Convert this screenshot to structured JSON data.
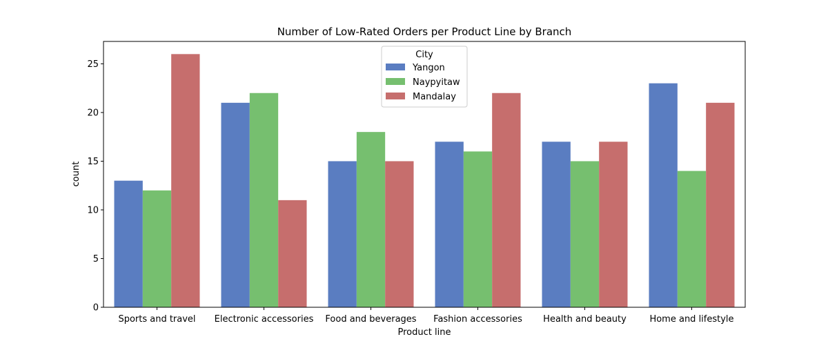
{
  "chart_data": {
    "type": "bar",
    "title": "Number of Low-Rated Orders per Product Line by Branch",
    "xlabel": "Product line",
    "ylabel": "count",
    "categories": [
      "Sports and travel",
      "Electronic accessories",
      "Food and beverages",
      "Fashion accessories",
      "Health and beauty",
      "Home and lifestyle"
    ],
    "series": [
      {
        "name": "Yangon",
        "color": "#5a7dc1",
        "values": [
          13,
          21,
          15,
          17,
          17,
          23
        ]
      },
      {
        "name": "Naypyitaw",
        "color": "#76bf6f",
        "values": [
          12,
          22,
          18,
          16,
          15,
          14
        ]
      },
      {
        "name": "Mandalay",
        "color": "#c66e6d",
        "values": [
          26,
          11,
          15,
          22,
          17,
          21
        ]
      }
    ],
    "ylim": [
      0,
      27.3
    ],
    "yticks": [
      0,
      5,
      10,
      15,
      20,
      25
    ],
    "grid": false,
    "legend": {
      "title": "City",
      "position": "top-center"
    }
  }
}
